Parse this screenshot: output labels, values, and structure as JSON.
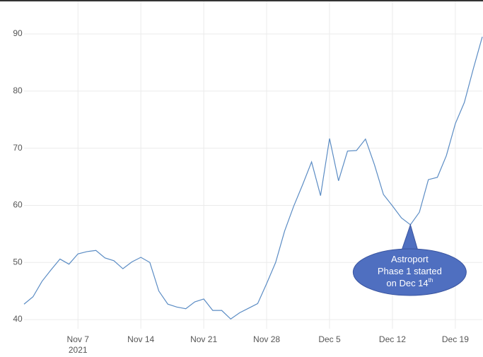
{
  "chart_data": {
    "type": "line",
    "x": [
      "2021-11-01",
      "2021-11-02",
      "2021-11-03",
      "2021-11-04",
      "2021-11-05",
      "2021-11-06",
      "2021-11-07",
      "2021-11-08",
      "2021-11-09",
      "2021-11-10",
      "2021-11-11",
      "2021-11-12",
      "2021-11-13",
      "2021-11-14",
      "2021-11-15",
      "2021-11-16",
      "2021-11-17",
      "2021-11-18",
      "2021-11-19",
      "2021-11-20",
      "2021-11-21",
      "2021-11-22",
      "2021-11-23",
      "2021-11-24",
      "2021-11-25",
      "2021-11-26",
      "2021-11-27",
      "2021-11-28",
      "2021-11-29",
      "2021-11-30",
      "2021-12-01",
      "2021-12-02",
      "2021-12-03",
      "2021-12-04",
      "2021-12-05",
      "2021-12-06",
      "2021-12-07",
      "2021-12-08",
      "2021-12-09",
      "2021-12-10",
      "2021-12-11",
      "2021-12-12",
      "2021-12-13",
      "2021-12-14",
      "2021-12-15",
      "2021-12-16",
      "2021-12-17",
      "2021-12-18",
      "2021-12-19",
      "2021-12-20",
      "2021-12-21",
      "2021-12-22"
    ],
    "series": [
      {
        "color": "#5b8cc4",
        "values": [
          42.7,
          44.0,
          46.7,
          48.7,
          50.6,
          49.7,
          51.5,
          51.9,
          52.1,
          50.8,
          50.3,
          48.9,
          50.1,
          50.9,
          50.0,
          45.0,
          42.7,
          42.2,
          41.9,
          43.1,
          43.6,
          41.6,
          41.6,
          40.1,
          41.2,
          42.0,
          42.8,
          46.3,
          50.0,
          55.5,
          59.8,
          63.6,
          67.6,
          61.7,
          71.7,
          64.3,
          69.5,
          69.6,
          71.6,
          67.1,
          61.9,
          59.9,
          57.8,
          56.6,
          58.8,
          64.5,
          64.9,
          68.7,
          74.3,
          78.0,
          83.9,
          89.5
        ]
      }
    ],
    "xlim": [
      "2021-11-01",
      "2021-12-22"
    ],
    "xticks": [
      {
        "value": "2021-11-07",
        "label": "Nov 7"
      },
      {
        "value": "2021-11-14",
        "label": "Nov 14"
      },
      {
        "value": "2021-11-21",
        "label": "Nov 21"
      },
      {
        "value": "2021-11-28",
        "label": "Nov 28"
      },
      {
        "value": "2021-12-05",
        "label": "Dec 5"
      },
      {
        "value": "2021-12-12",
        "label": "Dec 12"
      },
      {
        "value": "2021-12-19",
        "label": "Dec 19"
      }
    ],
    "x_year_label": "2021",
    "ylim": [
      38.4,
      95.7
    ],
    "yticks": [
      40,
      50,
      60,
      70,
      80,
      90
    ],
    "grid": true,
    "annotation": {
      "x": "2021-12-14",
      "lines": [
        "Astroport",
        "Phase 1 started",
        "on Dec 14"
      ],
      "superscript": "th",
      "color": "#4f6fc0"
    }
  }
}
